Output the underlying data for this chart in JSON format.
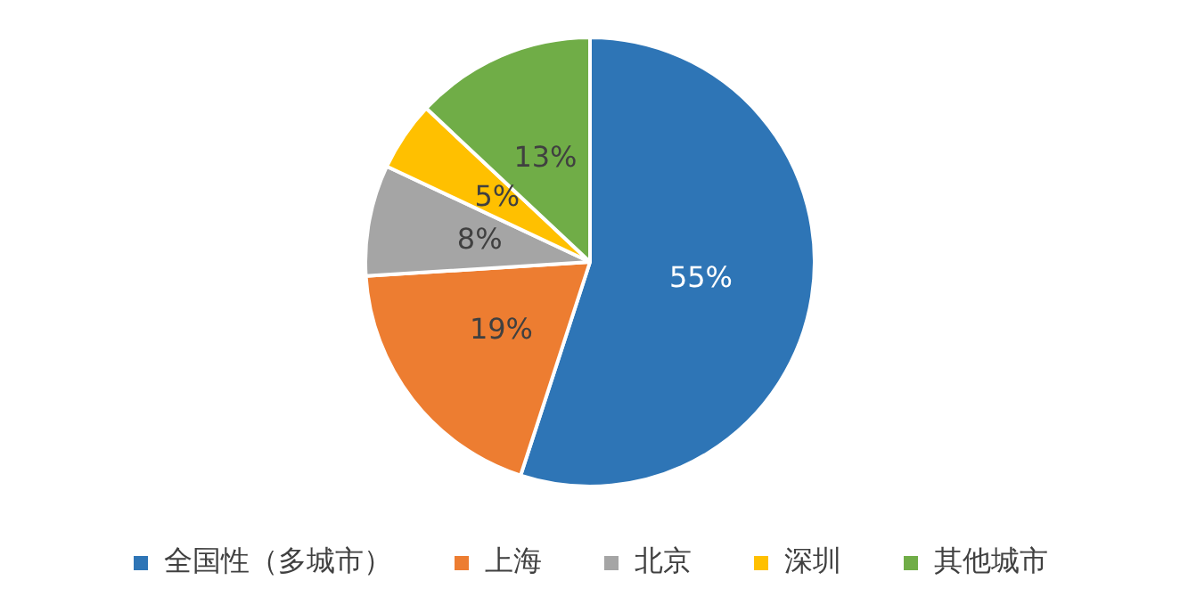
{
  "chart_data": {
    "type": "pie",
    "categories": [
      "全国性（多城市）",
      "上海",
      "北京",
      "深圳",
      "其他城市"
    ],
    "values": [
      55,
      19,
      8,
      5,
      13
    ],
    "colors": [
      "#2e75b6",
      "#ed7d31",
      "#a5a5a5",
      "#ffc000",
      "#70ad47"
    ],
    "value_labels": [
      "55%",
      "19%",
      "8%",
      "5%",
      "13%"
    ],
    "legend": "bottom"
  }
}
